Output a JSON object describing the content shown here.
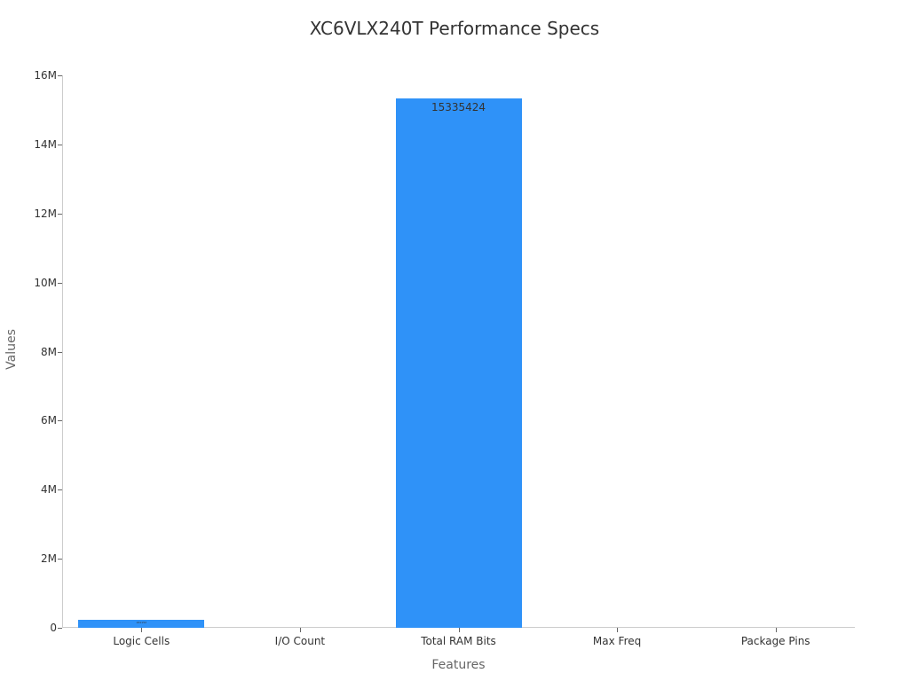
{
  "chart_data": {
    "type": "bar",
    "title": "XC6VLX240T Performance Specs",
    "xlabel": "Features",
    "ylabel": "Values",
    "categories": [
      "Logic Cells",
      "I/O Count",
      "Total RAM Bits",
      "Max Freq",
      "Package Pins"
    ],
    "values": [
      241152,
      720,
      15335424,
      600,
      1156
    ],
    "data_labels": [
      "241152",
      "",
      "15335424",
      "",
      ""
    ],
    "ylim": [
      0,
      16000000
    ],
    "yticks": [
      "0",
      "2M",
      "4M",
      "6M",
      "8M",
      "10M",
      "12M",
      "14M",
      "16M"
    ],
    "grid": false,
    "bar_color": "#2f92f8"
  }
}
